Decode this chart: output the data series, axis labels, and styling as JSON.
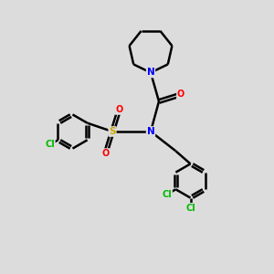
{
  "background_color": "#dcdcdc",
  "bond_color": "#000000",
  "bond_width": 1.8,
  "atom_colors": {
    "N": "#0000ff",
    "O": "#ff0000",
    "S": "#ccaa00",
    "Cl": "#00bb00",
    "C": "#000000"
  },
  "figsize": [
    3.0,
    3.0
  ],
  "dpi": 100,
  "xlim": [
    0,
    10
  ],
  "ylim": [
    0,
    10
  ]
}
